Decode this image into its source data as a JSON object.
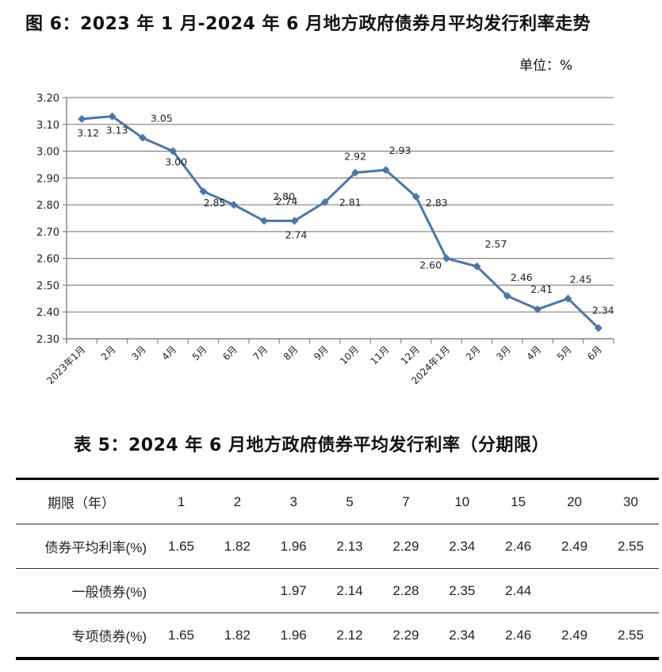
{
  "figure": {
    "title": "图 6：2023 年 1 月-2024 年 6 月地方政府债券月平均发行利率走势",
    "unit": "单位：%"
  },
  "chart_data": {
    "type": "line",
    "title": "图 6：2023 年 1 月-2024 年 6 月地方政府债券月平均发行利率走势",
    "xlabel": "",
    "ylabel": "单位：%",
    "ylim": [
      2.3,
      3.2
    ],
    "yticks": [
      "3.20",
      "3.10",
      "3.00",
      "2.90",
      "2.80",
      "2.70",
      "2.60",
      "2.50",
      "2.40",
      "2.30"
    ],
    "grid": true,
    "legend": "none",
    "line_color": "#4a76a8",
    "categories": [
      "2023年1月",
      "2月",
      "3月",
      "4月",
      "5月",
      "6月",
      "7月",
      "8月",
      "9月",
      "10月",
      "11月",
      "12月",
      "2024年1月",
      "2月",
      "3月",
      "4月",
      "5月",
      "6月"
    ],
    "series": [
      {
        "name": "地方政府债券月平均发行利率",
        "values": [
          3.12,
          3.13,
          3.05,
          3.0,
          2.85,
          2.8,
          2.74,
          2.74,
          2.81,
          2.92,
          2.93,
          2.83,
          2.6,
          2.57,
          2.46,
          2.41,
          2.45,
          2.34
        ]
      }
    ],
    "data_labels": [
      "3.12",
      "3.13",
      "3.05",
      "3.00",
      "2.85",
      "2.80",
      "2.74",
      "2.74",
      "2.81",
      "2.92",
      "2.93",
      "2.83",
      "2.60",
      "2.57",
      "2.46",
      "2.41",
      "2.45",
      "2.34"
    ]
  },
  "table": {
    "title": "表 5：2024 年 6 月地方政府债券平均发行利率（分期限）",
    "header": {
      "label": "期限（年）",
      "cells": [
        "1",
        "2",
        "3",
        "5",
        "7",
        "10",
        "15",
        "20",
        "30"
      ]
    },
    "rows": [
      {
        "label": "债券平均利率(%)",
        "cells": [
          "1.65",
          "1.82",
          "1.96",
          "2.13",
          "2.29",
          "2.34",
          "2.46",
          "2.49",
          "2.55"
        ]
      },
      {
        "label": "一般债券(%)",
        "cells": [
          "",
          "",
          "1.97",
          "2.14",
          "2.28",
          "2.35",
          "2.44",
          "",
          ""
        ]
      },
      {
        "label": "专项债券(%)",
        "cells": [
          "1.65",
          "1.82",
          "1.96",
          "2.12",
          "2.29",
          "2.34",
          "2.46",
          "2.49",
          "2.55"
        ]
      }
    ]
  }
}
